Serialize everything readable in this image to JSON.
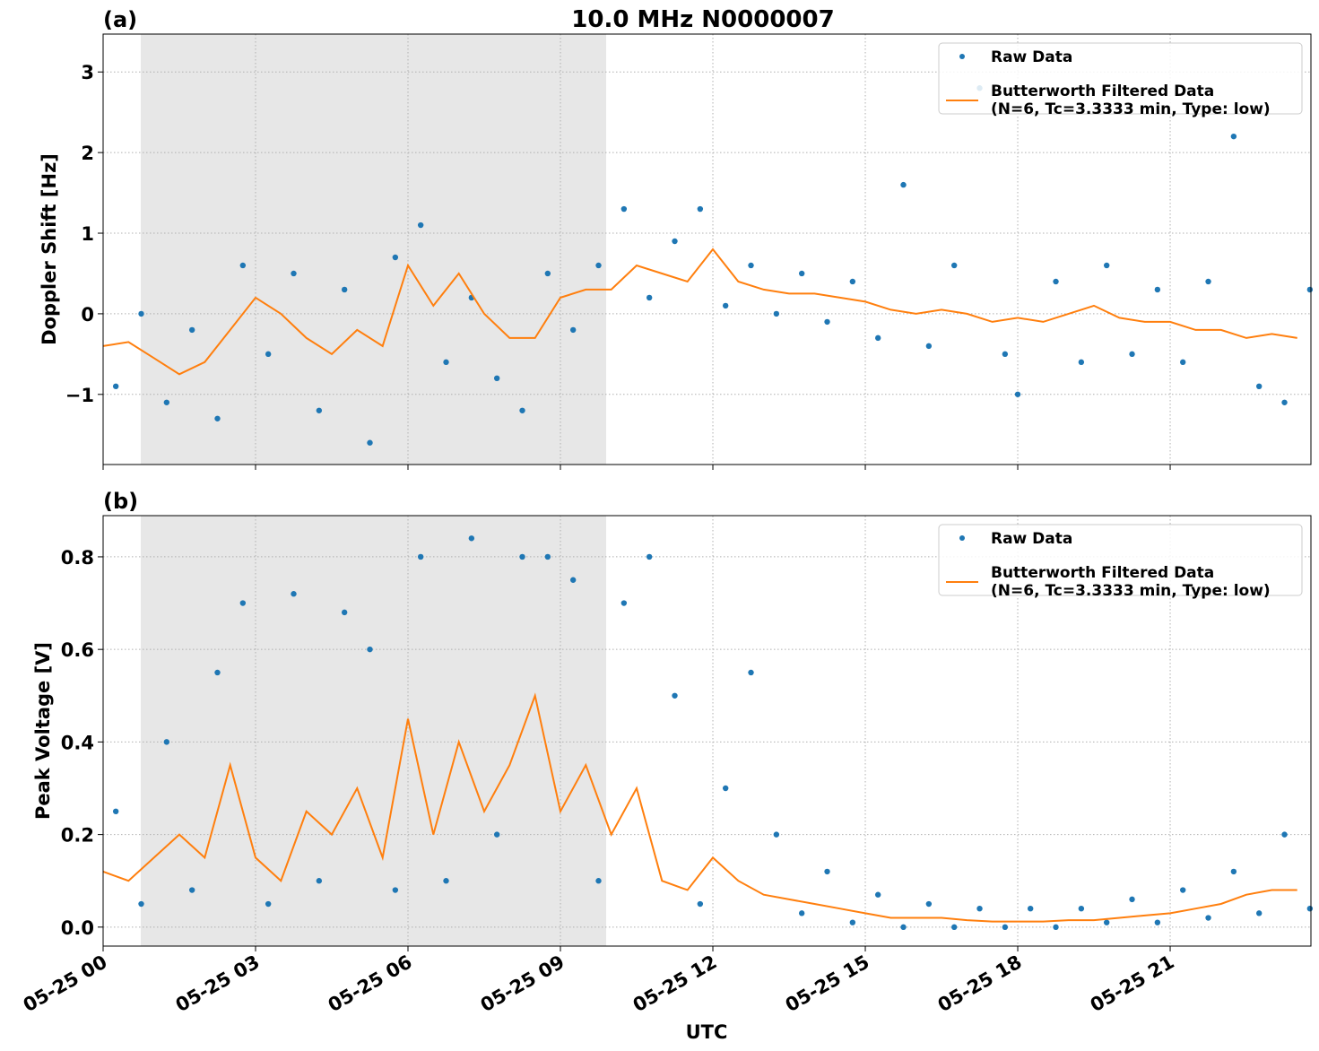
{
  "chart_data": [
    {
      "type": "scatter-line",
      "title": "10.0 MHz N0000007",
      "panel_label": "(a)",
      "ylabel": "Doppler Shift [Hz]",
      "xlim": [
        0,
        23.77
      ],
      "ylim": [
        -1.87,
        3.47
      ],
      "yticks": [
        {
          "value": -1,
          "label": "−1"
        },
        0,
        1,
        2,
        3
      ],
      "grid": true,
      "legend": "upper right",
      "shaded_span": [
        0.74,
        9.9
      ],
      "series": [
        {
          "name": "Raw Data",
          "kind": "scatter",
          "color": "#1f77b4",
          "x": [
            0.25,
            0.75,
            1.25,
            1.75,
            2.25,
            2.75,
            3.25,
            3.75,
            4.25,
            4.75,
            5.25,
            5.75,
            6.25,
            6.75,
            7.25,
            7.75,
            8.25,
            8.75,
            9.25,
            9.75,
            10.25,
            10.75,
            11.25,
            11.75,
            12.25,
            12.75,
            13.25,
            13.75,
            14.25,
            14.75,
            15.25,
            15.75,
            16.25,
            16.75,
            17.25,
            17.75,
            18.0,
            18.75,
            19.25,
            19.75,
            20.25,
            20.75,
            21.25,
            21.75,
            22.25,
            22.75,
            23.25,
            23.75
          ],
          "values": [
            -0.9,
            0.0,
            -1.1,
            -0.2,
            -1.3,
            0.6,
            -0.5,
            0.5,
            -1.2,
            0.3,
            -1.6,
            0.7,
            1.1,
            -0.6,
            0.2,
            -0.8,
            -1.2,
            0.5,
            -0.2,
            0.6,
            1.3,
            0.2,
            0.9,
            1.3,
            0.1,
            0.6,
            0.0,
            0.5,
            -0.1,
            0.4,
            -0.3,
            1.6,
            -0.4,
            0.6,
            2.8,
            -0.5,
            -1.0,
            0.4,
            -0.6,
            0.6,
            -0.5,
            0.3,
            -0.6,
            0.4,
            2.2,
            -0.9,
            -1.1,
            0.3
          ]
        },
        {
          "name": "Butterworth Filtered Data\n(N=6, Tc=3.3333 min, Type: low)",
          "kind": "line",
          "color": "#ff7f0e",
          "x": [
            0,
            0.5,
            1,
            1.5,
            2,
            2.5,
            3,
            3.5,
            4,
            4.5,
            5,
            5.5,
            6,
            6.5,
            7,
            7.5,
            8,
            8.5,
            9,
            9.5,
            10,
            10.5,
            11,
            11.5,
            12,
            12.5,
            13,
            13.5,
            14,
            14.5,
            15,
            15.5,
            16,
            16.5,
            17,
            17.5,
            18,
            18.5,
            19,
            19.5,
            20,
            20.5,
            21,
            21.5,
            22,
            22.5,
            23,
            23.5
          ],
          "values": [
            -0.4,
            -0.35,
            -0.55,
            -0.75,
            -0.6,
            -0.2,
            0.2,
            0.0,
            -0.3,
            -0.5,
            -0.2,
            -0.4,
            0.6,
            0.1,
            0.5,
            0.0,
            -0.3,
            -0.3,
            0.2,
            0.3,
            0.3,
            0.6,
            0.5,
            0.4,
            0.8,
            0.4,
            0.3,
            0.25,
            0.25,
            0.2,
            0.15,
            0.05,
            0.0,
            0.05,
            0.0,
            -0.1,
            -0.05,
            -0.1,
            0.0,
            0.1,
            -0.05,
            -0.1,
            -0.1,
            -0.2,
            -0.2,
            -0.3,
            -0.25,
            -0.3
          ]
        }
      ]
    },
    {
      "type": "scatter-line",
      "panel_label": "(b)",
      "ylabel": "Peak Voltage [V]",
      "xlabel": "UTC",
      "xlim": [
        0,
        23.77
      ],
      "ylim": [
        -0.041,
        0.889
      ],
      "xticks": [
        {
          "value": 0,
          "label": "05-25 00"
        },
        {
          "value": 3,
          "label": "05-25 03"
        },
        {
          "value": 6,
          "label": "05-25 06"
        },
        {
          "value": 9,
          "label": "05-25 09"
        },
        {
          "value": 12,
          "label": "05-25 12"
        },
        {
          "value": 15,
          "label": "05-25 15"
        },
        {
          "value": 18,
          "label": "05-25 18"
        },
        {
          "value": 21,
          "label": "05-25 21"
        }
      ],
      "yticks": [
        {
          "value": 0,
          "label": "0.0"
        },
        0.2,
        0.4,
        0.6,
        0.8
      ],
      "grid": true,
      "legend": "upper right",
      "shaded_span": [
        0.74,
        9.9
      ],
      "series": [
        {
          "name": "Raw Data",
          "kind": "scatter",
          "color": "#1f77b4",
          "x": [
            0.25,
            0.75,
            1.25,
            1.75,
            2.25,
            2.75,
            3.25,
            3.75,
            4.25,
            4.75,
            5.25,
            5.75,
            6.25,
            6.75,
            7.25,
            7.75,
            8.25,
            8.75,
            9.25,
            9.75,
            10.25,
            10.75,
            11.25,
            11.75,
            12.25,
            12.75,
            13.25,
            13.75,
            14.25,
            14.75,
            15.25,
            15.75,
            16.25,
            16.75,
            17.25,
            17.75,
            18.25,
            18.75,
            19.25,
            19.75,
            20.25,
            20.75,
            21.25,
            21.75,
            22.25,
            22.75,
            23.25,
            23.75
          ],
          "values": [
            0.25,
            0.05,
            0.4,
            0.08,
            0.55,
            0.7,
            0.05,
            0.72,
            0.1,
            0.68,
            0.6,
            0.08,
            0.8,
            0.1,
            0.84,
            0.2,
            0.8,
            0.8,
            0.75,
            0.1,
            0.7,
            0.8,
            0.5,
            0.05,
            0.3,
            0.55,
            0.2,
            0.03,
            0.12,
            0.01,
            0.07,
            0.0,
            0.05,
            0.0,
            0.04,
            0.0,
            0.04,
            0.0,
            0.04,
            0.01,
            0.06,
            0.01,
            0.08,
            0.02,
            0.12,
            0.03,
            0.2,
            0.04
          ]
        },
        {
          "name": "Butterworth Filtered Data\n(N=6, Tc=3.3333 min, Type: low)",
          "kind": "line",
          "color": "#ff7f0e",
          "x": [
            0,
            0.5,
            1,
            1.5,
            2,
            2.5,
            3,
            3.5,
            4,
            4.5,
            5,
            5.5,
            6,
            6.5,
            7,
            7.5,
            8,
            8.5,
            9,
            9.5,
            10,
            10.5,
            11,
            11.5,
            12,
            12.5,
            13,
            13.5,
            14,
            14.5,
            15,
            15.5,
            16,
            16.5,
            17,
            17.5,
            18,
            18.5,
            19,
            19.5,
            20,
            20.5,
            21,
            21.5,
            22,
            22.5,
            23,
            23.5
          ],
          "values": [
            0.12,
            0.1,
            0.15,
            0.2,
            0.15,
            0.35,
            0.15,
            0.1,
            0.25,
            0.2,
            0.3,
            0.15,
            0.45,
            0.2,
            0.4,
            0.25,
            0.35,
            0.5,
            0.25,
            0.35,
            0.2,
            0.3,
            0.1,
            0.08,
            0.15,
            0.1,
            0.07,
            0.06,
            0.05,
            0.04,
            0.03,
            0.02,
            0.02,
            0.02,
            0.015,
            0.012,
            0.012,
            0.012,
            0.015,
            0.015,
            0.02,
            0.025,
            0.03,
            0.04,
            0.05,
            0.07,
            0.08,
            0.08
          ]
        }
      ]
    }
  ]
}
